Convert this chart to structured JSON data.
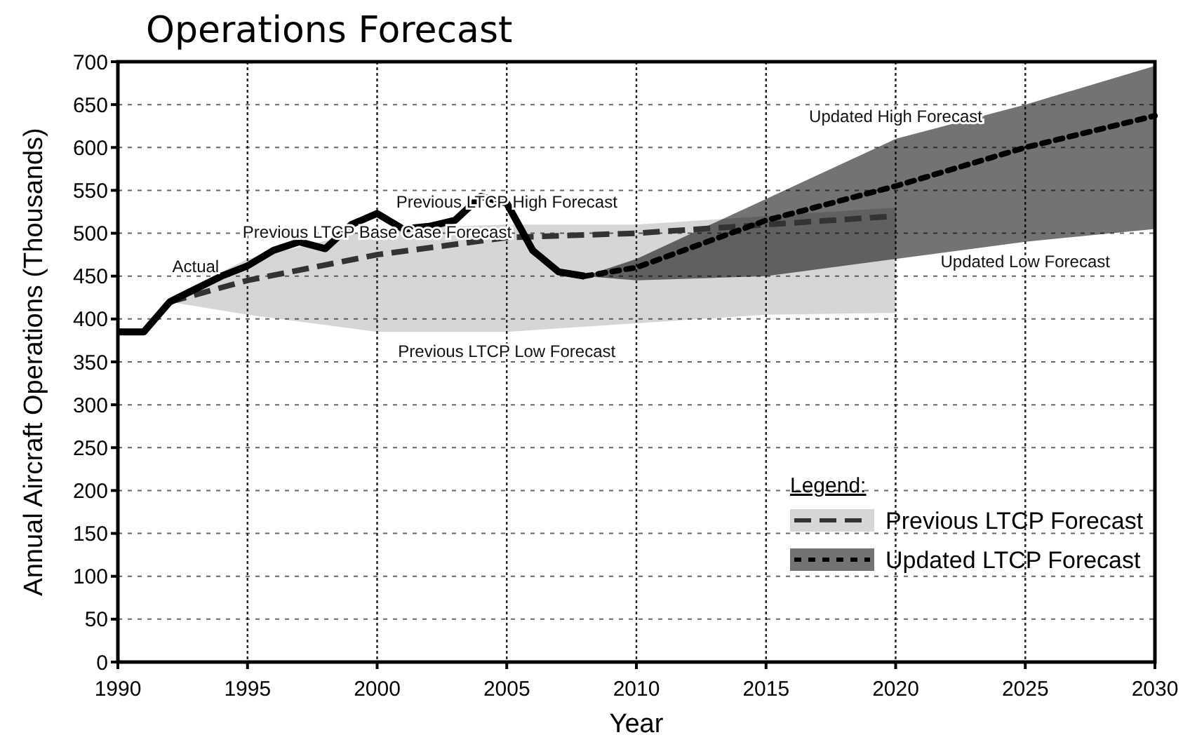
{
  "chart_data": {
    "type": "line",
    "title": "Operations Forecast",
    "xlabel": "Year",
    "ylabel": "Annual Aircraft Operations (Thousands)",
    "legend_title": "Legend:",
    "legend": "bottom right",
    "grid": true,
    "xlim": [
      1990,
      2030
    ],
    "xticks": [
      1990,
      1995,
      2000,
      2005,
      2010,
      2015,
      2020,
      2025,
      2030
    ],
    "ylim": [
      0,
      700
    ],
    "yticks": [
      0,
      50,
      100,
      150,
      200,
      250,
      300,
      350,
      400,
      450,
      500,
      550,
      600,
      650,
      700
    ],
    "series": [
      {
        "name": "Previous LTCP Forecast",
        "color": "#333333",
        "line_style": "dashed",
        "x": [
          1992,
          1995,
          2000,
          2005,
          2010,
          2015,
          2020
        ],
        "values": [
          420,
          445,
          475,
          495,
          500,
          510,
          520
        ],
        "lower": [
          420,
          405,
          385,
          385,
          395,
          405,
          407
        ],
        "upper": [
          425,
          470,
          505,
          510,
          510,
          520,
          530
        ]
      },
      {
        "name": "Updated LTCP Forecast",
        "color": "#000000",
        "line_style": "dotted",
        "x": [
          2008,
          2010,
          2015,
          2020,
          2025,
          2030
        ],
        "values": [
          450,
          460,
          515,
          555,
          600,
          637
        ],
        "lower": [
          450,
          445,
          450,
          470,
          490,
          505
        ],
        "upper": [
          450,
          470,
          540,
          610,
          650,
          695
        ]
      },
      {
        "color": "#000000",
        "line_style": "solid",
        "x": [
          1990,
          1991,
          1992,
          1993,
          1994,
          1995,
          1996,
          1997,
          1998,
          1999,
          2000,
          2001,
          2002,
          2003,
          2004,
          2005,
          2006,
          2007,
          2008
        ],
        "values": [
          385,
          385,
          420,
          435,
          450,
          462,
          480,
          490,
          482,
          510,
          523,
          505,
          508,
          515,
          543,
          535,
          480,
          455,
          450
        ]
      }
    ],
    "annotations": [
      {
        "text": "Actual",
        "x": 1993,
        "y": 435
      },
      {
        "text": "Previous LTCP High Forecast",
        "x": 2005,
        "y": 510
      },
      {
        "text": "Previous LTCP Base Case Forecast",
        "x": 2000,
        "y": 475
      },
      {
        "text": "Previous LTCP Low Forecast",
        "x": 2005,
        "y": 385
      },
      {
        "text": "Updated High Forecast",
        "x": 2020,
        "y": 610
      },
      {
        "text": "Updated Low Forecast",
        "x": 2025,
        "y": 490
      }
    ]
  }
}
